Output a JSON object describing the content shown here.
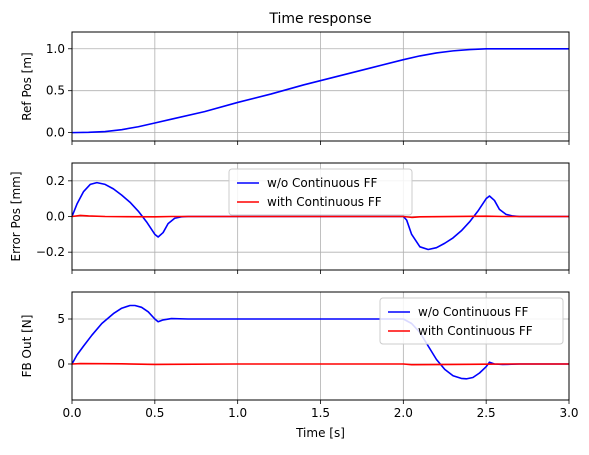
{
  "chart_data": [
    {
      "type": "line",
      "title": "Time response",
      "xlabel": "",
      "ylabel": "Ref Pos [m]",
      "xlim": [
        0,
        3
      ],
      "ylim": [
        -0.1,
        1.2
      ],
      "xticks": [
        0.0,
        0.5,
        1.0,
        1.5,
        2.0,
        2.5,
        3.0
      ],
      "yticks": [
        "0.0",
        "0.5",
        "1.0"
      ],
      "ytick_values": [
        0.0,
        0.5,
        1.0
      ],
      "grid": true,
      "legend": null,
      "series": [
        {
          "color": "#0000ff",
          "x": [
            0,
            0.1,
            0.2,
            0.3,
            0.4,
            0.5,
            0.6,
            0.8,
            1.0,
            1.2,
            1.4,
            1.6,
            1.8,
            2.0,
            2.1,
            2.2,
            2.3,
            2.4,
            2.5,
            2.6,
            2.8,
            3.0
          ],
          "y": [
            0,
            0.003,
            0.013,
            0.035,
            0.07,
            0.115,
            0.16,
            0.25,
            0.36,
            0.46,
            0.57,
            0.67,
            0.77,
            0.87,
            0.915,
            0.95,
            0.975,
            0.99,
            1.0,
            1.0,
            1.0,
            1.0
          ]
        }
      ]
    },
    {
      "type": "line",
      "title": "",
      "xlabel": "",
      "ylabel": "Error Pos [mm]",
      "xlim": [
        0,
        3
      ],
      "ylim": [
        -0.3,
        0.3
      ],
      "yticks": [
        "−0.2",
        "0.0",
        "0.2"
      ],
      "ytick_values": [
        -0.2,
        0.0,
        0.2
      ],
      "grid": true,
      "legend": "upper-center",
      "series": [
        {
          "name": "w/o Continuous FF",
          "color": "#0000ff",
          "x": [
            0,
            0.03,
            0.07,
            0.11,
            0.15,
            0.2,
            0.25,
            0.3,
            0.35,
            0.4,
            0.45,
            0.5,
            0.52,
            0.55,
            0.58,
            0.62,
            0.66,
            0.7,
            0.8,
            1.0,
            1.5,
            2.0,
            2.02,
            2.05,
            2.1,
            2.15,
            2.2,
            2.25,
            2.3,
            2.35,
            2.4,
            2.45,
            2.5,
            2.52,
            2.55,
            2.58,
            2.62,
            2.66,
            2.7,
            2.8,
            3.0
          ],
          "y": [
            0,
            0.07,
            0.14,
            0.18,
            0.19,
            0.18,
            0.155,
            0.12,
            0.08,
            0.03,
            -0.03,
            -0.1,
            -0.115,
            -0.09,
            -0.04,
            -0.01,
            -0.002,
            0,
            0,
            0,
            0,
            0,
            -0.02,
            -0.1,
            -0.17,
            -0.185,
            -0.175,
            -0.15,
            -0.12,
            -0.08,
            -0.03,
            0.03,
            0.1,
            0.115,
            0.09,
            0.04,
            0.012,
            0.003,
            0,
            0,
            0
          ]
        },
        {
          "name": "with Continuous FF",
          "color": "#ff0000",
          "x": [
            0,
            0.05,
            0.1,
            0.2,
            0.5,
            0.6,
            1.0,
            2.0,
            2.05,
            2.1,
            2.5,
            2.6,
            3.0
          ],
          "y": [
            0,
            0.006,
            0.003,
            0.0,
            -0.002,
            0.0,
            0,
            0,
            -0.005,
            -0.002,
            0.002,
            0,
            0
          ]
        }
      ]
    },
    {
      "type": "line",
      "title": "",
      "xlabel": "Time [s]",
      "ylabel": "FB Out [N]",
      "xlim": [
        0,
        3
      ],
      "ylim": [
        -4,
        8
      ],
      "xticks": [
        "0.0",
        "0.5",
        "1.0",
        "1.5",
        "2.0",
        "2.5",
        "3.0"
      ],
      "xtick_values": [
        0,
        0.5,
        1,
        1.5,
        2,
        2.5,
        3
      ],
      "yticks": [
        "0",
        "5"
      ],
      "ytick_values": [
        0,
        5
      ],
      "grid": true,
      "legend": "upper-right",
      "series": [
        {
          "name": "w/o Continuous FF",
          "color": "#0000ff",
          "x": [
            0,
            0.03,
            0.07,
            0.12,
            0.18,
            0.25,
            0.3,
            0.35,
            0.38,
            0.42,
            0.46,
            0.5,
            0.52,
            0.55,
            0.6,
            0.7,
            1.0,
            1.5,
            2.0,
            2.05,
            2.1,
            2.15,
            2.2,
            2.25,
            2.3,
            2.35,
            2.38,
            2.42,
            2.46,
            2.5,
            2.52,
            2.55,
            2.6,
            2.7,
            3.0
          ],
          "y": [
            0,
            1.0,
            2.0,
            3.2,
            4.5,
            5.6,
            6.2,
            6.5,
            6.5,
            6.3,
            5.8,
            5.0,
            4.7,
            4.9,
            5.05,
            5.0,
            5.0,
            5.0,
            5.0,
            4.5,
            3.5,
            2.0,
            0.5,
            -0.6,
            -1.3,
            -1.6,
            -1.65,
            -1.5,
            -1.0,
            -0.3,
            0.2,
            0.0,
            -0.05,
            0,
            0
          ]
        },
        {
          "name": "with Continuous FF",
          "color": "#ff0000",
          "x": [
            0,
            0.05,
            0.3,
            0.5,
            0.6,
            1.0,
            2.0,
            2.05,
            2.3,
            2.5,
            2.6,
            3.0
          ],
          "y": [
            0,
            0.05,
            0.02,
            -0.05,
            -0.03,
            0,
            0,
            -0.08,
            -0.05,
            -0.02,
            0,
            0
          ]
        }
      ]
    }
  ]
}
